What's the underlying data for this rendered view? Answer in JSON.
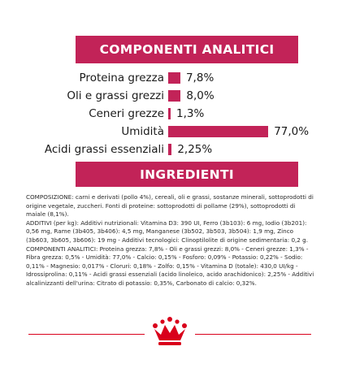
{
  "analysis": {
    "title": "COMPONENTI ANALITICI",
    "rows": [
      {
        "label": "Proteina grezza",
        "value": "7,8%",
        "percent": 7.8
      },
      {
        "label": "Oli e grassi grezzi",
        "value": "8,0%",
        "percent": 8.0
      },
      {
        "label": "Ceneri grezze",
        "value": "1,3%",
        "percent": 1.3
      },
      {
        "label": "Umidità",
        "value": "77,0%",
        "percent": 77.0
      },
      {
        "label": "Acidi grassi essenziali",
        "value": "2,25%",
        "percent": 2.25
      }
    ]
  },
  "ingredients": {
    "title": "INGREDIENTI",
    "paragraphs": [
      "COMPOSIZIONE: carni e derivati (pollo 4%), cereali, oli e grassi, sostanze minerali, sottoprodotti di origine vegetale, zuccheri. Fonti di proteine: sottoprodotti di pollame (29%), sottoprodotti di maiale (8,1%).",
      "ADDITIVI (per kg): Additivi nutrizionali: Vitamina D3: 390 UI, Ferro (3b103): 6 mg, Iodio (3b201): 0,56 mg, Rame (3b405, 3b406): 4,5 mg, Manganese (3b502, 3b503, 3b504): 1,9 mg, Zinco (3b603, 3b605, 3b606): 19 mg - Additivi tecnologici: Clinoptilolite di origine sedimentaria: 0,2 g.",
      "COMPONENTI ANALITICI: Proteina grezza: 7,8% - Oli e grassi grezzi: 8,0% - Ceneri grezze: 1,3% - Fibra grezza: 0,5% - Umidità: 77,0% - Calcio: 0,15% - Fosforo: 0,09% - Potassio: 0,22% - Sodio: 0,11% - Magnesio: 0,017% - Cloruri: 0,18% - Zolfo: 0,15% - Vitamina D (totale): 430,0 UI/kg - Idrossiprolina: 0,11% - Acidi grassi essenziali (acido linoleico, acido arachidonico): 2,25% - Additivi alcalinizzanti dell'urina: Citrato di potassio: 0,35%, Carbonato di calcio: 0,32%."
    ]
  },
  "colors": {
    "brand": "#c22358",
    "logo_red": "#d9001b"
  },
  "logo": {
    "icon": "royal-canin-crown-logo"
  }
}
